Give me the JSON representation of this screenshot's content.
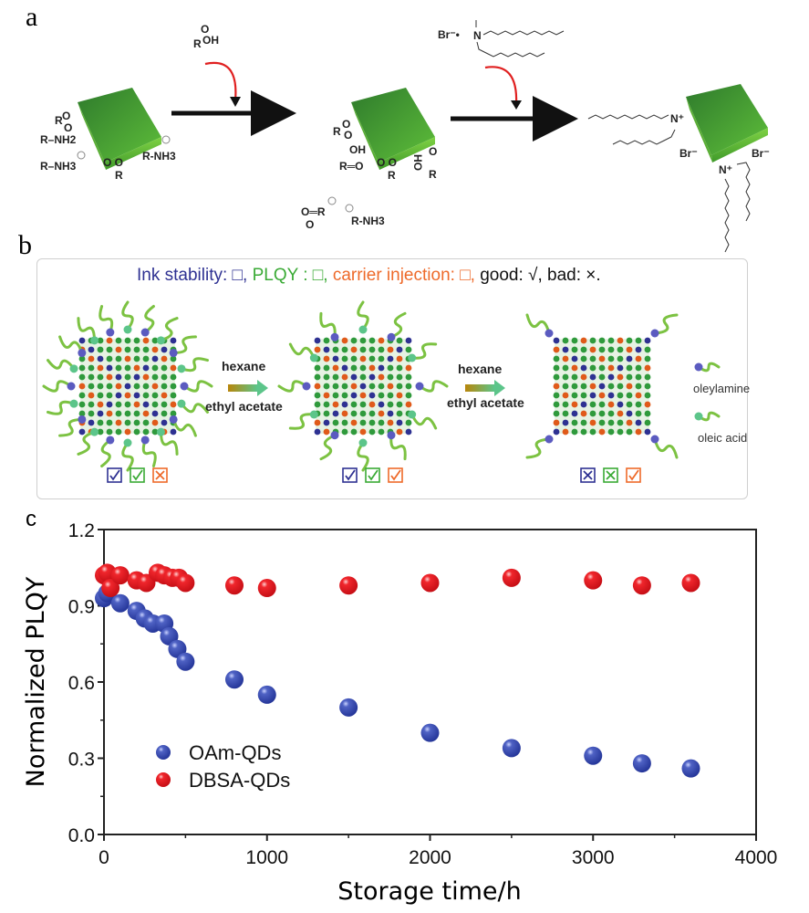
{
  "panels": {
    "a": {
      "letter": "a",
      "reagent1": {
        "formula_top": "O",
        "formula_bottom": "R–OH"
      },
      "reagent2": {
        "counterion": "Br⁻•",
        "center": "N⁺"
      },
      "cube1_ligands": [
        "R–O",
        "O",
        "R–NH2",
        "R–NH3",
        "O O",
        "R",
        "R-NH3"
      ],
      "cube2_ligands": [
        "R–O",
        "O",
        "OH",
        "R═O",
        "O O",
        "R",
        "HO",
        "O",
        "R"
      ],
      "byproducts": {
        "carboxylate": "O═R",
        "carboxylate_o": "O",
        "ammonium": "R-NH3"
      },
      "cube3_labels": {
        "n1": "N⁺",
        "n2": "N⁺",
        "br1": "Br⁻",
        "br2": "Br⁻"
      },
      "colors": {
        "cube": "#4caf2f",
        "cube_dark": "#2f7d2a",
        "curved_arrow": "#e02020"
      }
    },
    "b": {
      "letter": "b",
      "title": {
        "ink": "Ink stability: □,",
        "plqy": "PLQY : □,",
        "carrier": "carrier injection: □,",
        "rest": "good: √, bad: ×."
      },
      "arrow1": {
        "top": "hexane",
        "bottom": "ethyl acetate"
      },
      "arrow2": {
        "top": "hexane",
        "bottom": "ethyl acetate"
      },
      "legend": {
        "oleylamine": "oleylamine",
        "oleic_acid": "oleic acid"
      },
      "stages": [
        {
          "ink": "good",
          "plqy": "good",
          "carrier": "bad"
        },
        {
          "ink": "good",
          "plqy": "good",
          "carrier": "good"
        },
        {
          "ink": "bad",
          "plqy": "bad",
          "carrier": "good"
        }
      ],
      "colors": {
        "ink": "#2e3192",
        "plqy": "#3aaa35",
        "carrier": "#ee6a2a",
        "ligand": "#7cc242",
        "amine_head": "#5b5bc0",
        "acid_head": "#5cc58a"
      }
    },
    "c": {
      "letter": "c"
    }
  },
  "chart_data": {
    "type": "scatter",
    "title": "",
    "xlabel": "Storage time/h",
    "ylabel": "Normalized PLQY",
    "xlim": [
      0,
      4000
    ],
    "ylim": [
      0,
      1.2
    ],
    "xticks": [
      0,
      1000,
      2000,
      3000,
      4000
    ],
    "yticks": [
      0.0,
      0.3,
      0.6,
      0.9,
      1.2
    ],
    "xtick_labels": [
      "0",
      "1000",
      "2000",
      "3000",
      "4000"
    ],
    "ytick_labels": [
      "0.0",
      "0.3",
      "0.6",
      "0.9",
      "1.2"
    ],
    "grid": false,
    "legend_position": "lower-left",
    "series": [
      {
        "name": "OAm-QDs",
        "color": "#2e45a8",
        "x": [
          0,
          20,
          100,
          200,
          250,
          300,
          370,
          400,
          450,
          500,
          800,
          1000,
          1500,
          2000,
          2500,
          3000,
          3300,
          3600
        ],
        "y": [
          0.93,
          0.95,
          0.91,
          0.88,
          0.85,
          0.83,
          0.83,
          0.78,
          0.73,
          0.68,
          0.61,
          0.55,
          0.5,
          0.4,
          0.34,
          0.31,
          0.28,
          0.26
        ]
      },
      {
        "name": "DBSA-QDs",
        "color": "#e8141c",
        "x": [
          0,
          20,
          40,
          100,
          200,
          260,
          330,
          370,
          420,
          460,
          500,
          800,
          1000,
          1500,
          2000,
          2500,
          3000,
          3300,
          3600
        ],
        "y": [
          1.02,
          1.03,
          0.97,
          1.02,
          1.0,
          0.99,
          1.03,
          1.02,
          1.01,
          1.01,
          0.99,
          0.98,
          0.97,
          0.98,
          0.99,
          1.01,
          1.0,
          0.98,
          0.99
        ]
      }
    ]
  }
}
